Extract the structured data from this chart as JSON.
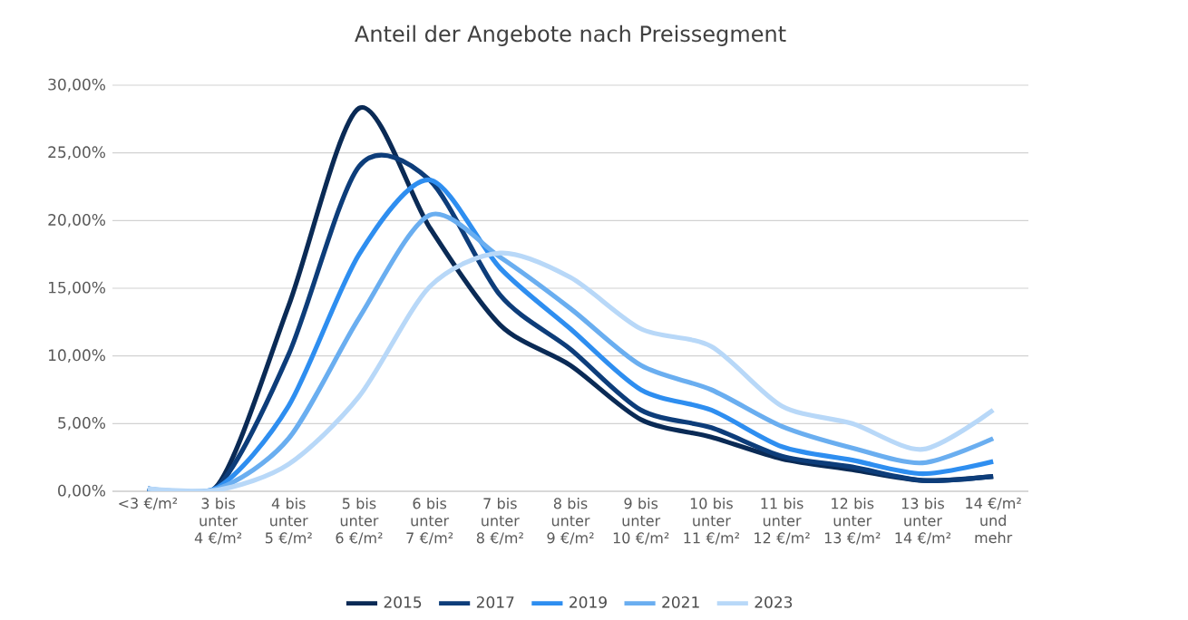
{
  "chart_data": {
    "type": "line",
    "title": "Anteil der Angebote nach Preissegment",
    "categories": [
      "<3 €/m²",
      "3 bis unter 4 €/m²",
      "4 bis unter 5 €/m²",
      "5 bis unter 6 €/m²",
      "6 bis unter 7 €/m²",
      "7 bis unter 8 €/m²",
      "8 bis unter 9 €/m²",
      "9 bis unter 10 €/m²",
      "10 bis unter 11 €/m²",
      "11 bis unter 12 €/m²",
      "12 bis unter 13 €/m²",
      "13 bis unter 14 €/m²",
      "14 €/m² und mehr"
    ],
    "series": [
      {
        "name": "2015",
        "color": "#0a2a55",
        "values": [
          0.2,
          0.5,
          13.7,
          28.3,
          19.5,
          12.3,
          9.3,
          5.3,
          4.0,
          2.4,
          1.6,
          0.8,
          1.1
        ]
      },
      {
        "name": "2017",
        "color": "#0d3d7a",
        "values": [
          0.2,
          0.4,
          10.1,
          24.0,
          23.0,
          14.5,
          10.5,
          6.0,
          4.7,
          2.6,
          1.8,
          0.8,
          1.1
        ]
      },
      {
        "name": "2019",
        "color": "#2e8ef0",
        "values": [
          0.2,
          0.3,
          6.3,
          17.5,
          23.0,
          16.5,
          12.0,
          7.5,
          6.0,
          3.3,
          2.3,
          1.3,
          2.2
        ]
      },
      {
        "name": "2021",
        "color": "#6aaef0",
        "values": [
          0.2,
          0.2,
          3.9,
          12.8,
          20.4,
          17.3,
          13.5,
          9.3,
          7.5,
          4.8,
          3.2,
          2.1,
          3.9
        ]
      },
      {
        "name": "2023",
        "color": "#b8d8f8",
        "values": [
          0.2,
          0.1,
          2.0,
          7.0,
          15.1,
          17.6,
          15.8,
          12.0,
          10.7,
          6.3,
          5.0,
          3.1,
          6.0
        ]
      }
    ],
    "ylim": [
      0,
      30
    ],
    "yticks": [
      {
        "value": 0,
        "label": "0,00%"
      },
      {
        "value": 5,
        "label": "5,00%"
      },
      {
        "value": 10,
        "label": "10,00%"
      },
      {
        "value": 15,
        "label": "15,00%"
      },
      {
        "value": 20,
        "label": "20,00%"
      },
      {
        "value": 25,
        "label": "25,00%"
      },
      {
        "value": 30,
        "label": "30,00%"
      }
    ],
    "grid": "y",
    "legend": "bottom",
    "marker": "none",
    "line_style": "solid"
  }
}
